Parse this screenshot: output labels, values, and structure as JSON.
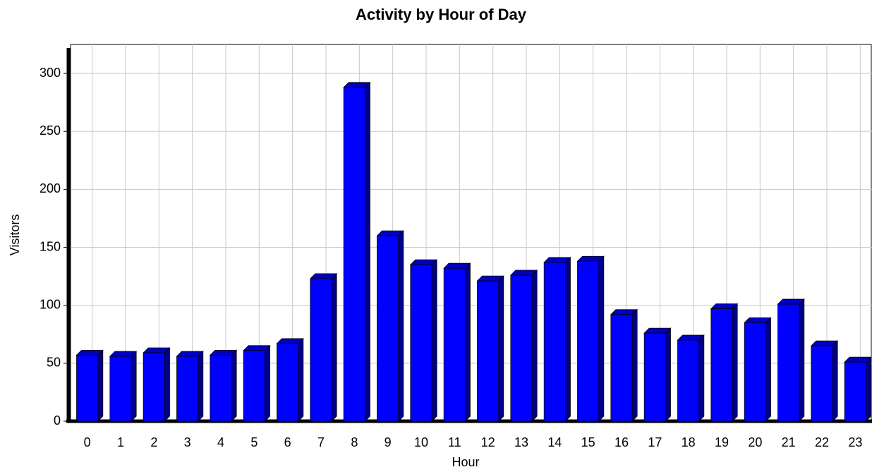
{
  "chart_data": {
    "type": "bar",
    "title": "Activity by Hour of Day",
    "x_label": "Hour",
    "y_label": "Visitors",
    "categories": [
      "0",
      "1",
      "2",
      "3",
      "4",
      "5",
      "6",
      "7",
      "8",
      "9",
      "10",
      "11",
      "12",
      "13",
      "14",
      "15",
      "16",
      "17",
      "18",
      "19",
      "20",
      "21",
      "22",
      "23"
    ],
    "values": [
      57,
      56,
      59,
      56,
      57,
      61,
      67,
      123,
      288,
      160,
      135,
      132,
      121,
      126,
      137,
      138,
      92,
      76,
      70,
      97,
      85,
      101,
      65,
      51
    ],
    "color": "#0000ff",
    "ylim": [
      0,
      325
    ],
    "yticks": [
      0,
      50,
      100,
      150,
      200,
      250,
      300
    ],
    "grid": true
  }
}
